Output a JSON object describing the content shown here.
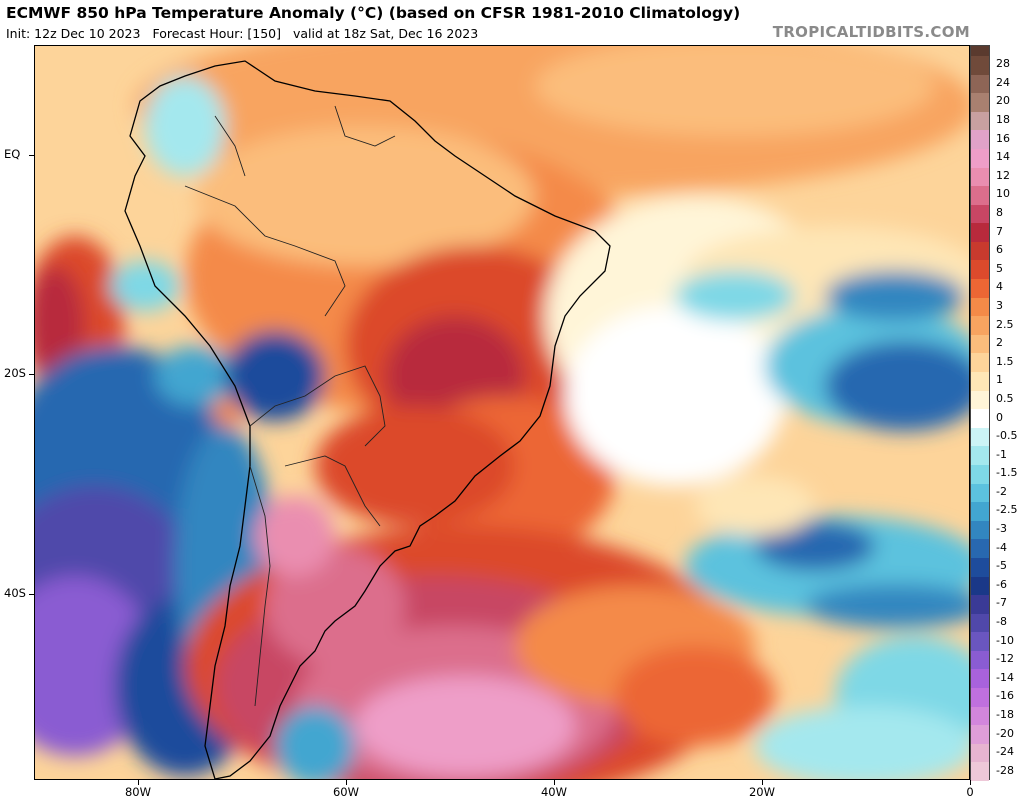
{
  "header": {
    "title": "ECMWF 850 hPa Temperature Anomaly (°C) (based on CFSR 1981-2010 Climatology)",
    "init": "Init: 12z Dec 10 2023",
    "forecast_hour": "Forecast Hour: [150]",
    "valid": "valid at 18z Sat, Dec 16 2023",
    "site": "TROPICALTIDBITS.COM"
  },
  "map": {
    "lon_range": [
      -90,
      0
    ],
    "lat_range": [
      -57,
      10
    ],
    "y_ticks": [
      {
        "label": "EQ",
        "lat": 0
      },
      {
        "label": "20S",
        "lat": -20
      },
      {
        "label": "40S",
        "lat": -40
      }
    ],
    "x_ticks": [
      {
        "label": "80W",
        "lon": -80
      },
      {
        "label": "60W",
        "lon": -60
      },
      {
        "label": "40W",
        "lon": -40
      },
      {
        "label": "20W",
        "lon": -20
      },
      {
        "label": "0",
        "lon": 0
      }
    ],
    "features": [
      "coastlines",
      "country-borders",
      "state-borders",
      "temperature-anomaly-shading"
    ]
  },
  "colorbar": {
    "levels": [
      {
        "label": "28",
        "color": "#704a3a"
      },
      {
        "label": "24",
        "color": "#8e6556"
      },
      {
        "label": "20",
        "color": "#a98070"
      },
      {
        "label": "18",
        "color": "#c8a0a0"
      },
      {
        "label": "16",
        "color": "#e0a2c8"
      },
      {
        "label": "14",
        "color": "#ee9ec8"
      },
      {
        "label": "12",
        "color": "#ea8eb0"
      },
      {
        "label": "10",
        "color": "#dc6e8c"
      },
      {
        "label": "8",
        "color": "#c84664"
      },
      {
        "label": "7",
        "color": "#b82a3c"
      },
      {
        "label": "6",
        "color": "#c83a2e"
      },
      {
        "label": "5",
        "color": "#dc4a2c"
      },
      {
        "label": "4",
        "color": "#ec6634"
      },
      {
        "label": "3",
        "color": "#f48a48"
      },
      {
        "label": "2.5",
        "color": "#f8a460"
      },
      {
        "label": "2",
        "color": "#fbbd7c"
      },
      {
        "label": "1.5",
        "color": "#fdd49a"
      },
      {
        "label": "1",
        "color": "#fee6b6"
      },
      {
        "label": "0.5",
        "color": "#fff5d8"
      },
      {
        "label": "0",
        "color": "#ffffff"
      },
      {
        "label": "-0.5",
        "color": "#ccf4f6"
      },
      {
        "label": "-1",
        "color": "#a4e8ee"
      },
      {
        "label": "-1.5",
        "color": "#7ed8e6"
      },
      {
        "label": "-2",
        "color": "#5cc2de"
      },
      {
        "label": "-2.5",
        "color": "#42a6d0"
      },
      {
        "label": "-3",
        "color": "#3286c0"
      },
      {
        "label": "-4",
        "color": "#2868b0"
      },
      {
        "label": "-5",
        "color": "#1e4c9c"
      },
      {
        "label": "-6",
        "color": "#1a3888"
      },
      {
        "label": "-7",
        "color": "#3a3a96"
      },
      {
        "label": "-8",
        "color": "#5048aa"
      },
      {
        "label": "-10",
        "color": "#6a56c0"
      },
      {
        "label": "-12",
        "color": "#8a5cd2"
      },
      {
        "label": "-14",
        "color": "#a862dc"
      },
      {
        "label": "-16",
        "color": "#c070de"
      },
      {
        "label": "-18",
        "color": "#d286dc"
      },
      {
        "label": "-20",
        "color": "#de9ed8"
      },
      {
        "label": "-24",
        "color": "#e6b4d0"
      },
      {
        "label": "-28",
        "color": "#eec8d8"
      }
    ]
  }
}
